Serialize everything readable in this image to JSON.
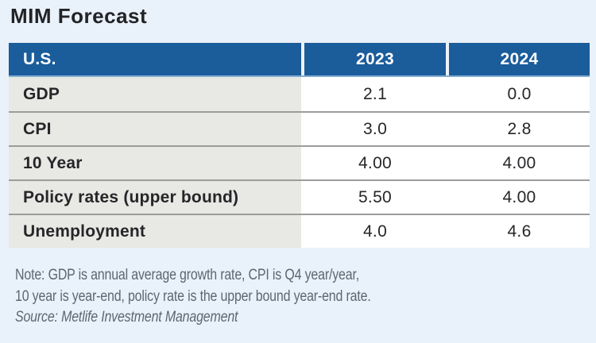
{
  "title": "MIM Forecast",
  "table": {
    "header": {
      "region": "U.S.",
      "col_2023": "2023",
      "col_2024": "2024"
    },
    "rows": [
      {
        "label": "GDP",
        "y2023": "2.1",
        "y2024": "0.0"
      },
      {
        "label": "CPI",
        "y2023": "3.0",
        "y2024": "2.8"
      },
      {
        "label": "10 Year",
        "y2023": "4.00",
        "y2024": "4.00"
      },
      {
        "label": "Policy rates (upper bound)",
        "y2023": "5.50",
        "y2024": "4.00"
      },
      {
        "label": "Unemployment",
        "y2023": "4.0",
        "y2024": "4.6"
      }
    ]
  },
  "note": {
    "line1": "Note: GDP is annual average growth rate, CPI is Q4 year/year,",
    "line2": "10 year is year-end, policy rate is the upper bound year-end rate.",
    "source": "Source: Metlife Investment Management"
  },
  "colors": {
    "header_blue": "#1b5c9b",
    "header_bottom_border": "#85add2",
    "label_cell_gray": "#e8e8e4",
    "row_separator": "#9c9c9c",
    "page_background": "#e9f1fa",
    "note_text": "#5d6771",
    "body_text": "#26262a"
  },
  "chart_data": {
    "type": "table",
    "title": "MIM Forecast",
    "columns": [
      "U.S.",
      "2023",
      "2024"
    ],
    "rows": [
      [
        "GDP",
        2.1,
        0.0
      ],
      [
        "CPI",
        3.0,
        2.8
      ],
      [
        "10 Year",
        4.0,
        4.0
      ],
      [
        "Policy rates (upper bound)",
        5.5,
        4.0
      ],
      [
        "Unemployment",
        4.0,
        4.6
      ]
    ],
    "note": "Note: GDP is annual average growth rate, CPI is Q4 year/year, 10 year is year-end, policy rate is the upper bound year-end rate.",
    "source": "Source: Metlife Investment Management"
  }
}
